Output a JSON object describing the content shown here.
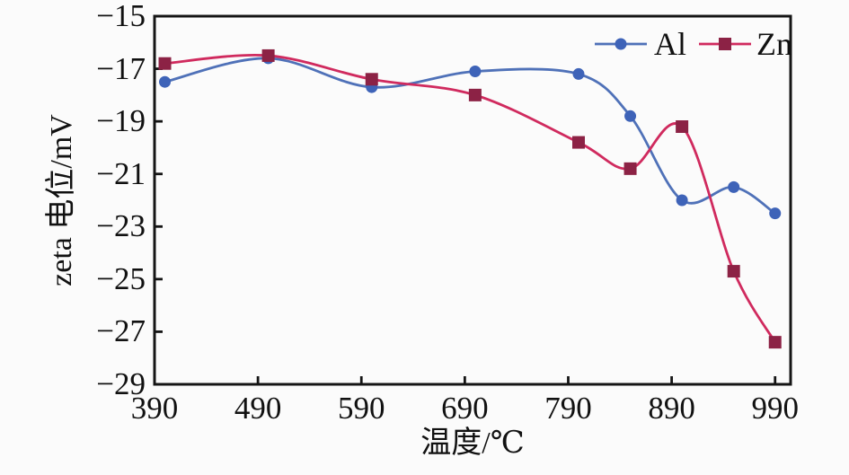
{
  "figure": {
    "background": "#fbfbfb",
    "axis_color": "#151515"
  },
  "chart_data": {
    "type": "line",
    "title": "",
    "xlabel": "温度/℃",
    "ylabel": "zeta 电位/mV",
    "x": [
      400,
      500,
      600,
      700,
      800,
      850,
      900,
      950,
      990
    ],
    "series": [
      {
        "name": "Al",
        "marker": "circle",
        "line_color": "#4f71b8",
        "marker_color": "#3e63b8",
        "values": [
          -17.5,
          -16.6,
          -17.7,
          -17.1,
          -17.2,
          -18.8,
          -22.0,
          -21.5,
          -22.5
        ]
      },
      {
        "name": "Zn",
        "marker": "square",
        "line_color": "#d02a5e",
        "marker_color": "#8c2245",
        "values": [
          -16.8,
          -16.5,
          -17.4,
          -18.0,
          -19.8,
          -20.8,
          -19.2,
          -24.7,
          -27.4
        ]
      }
    ],
    "xticks": [
      390,
      490,
      590,
      690,
      790,
      890,
      990
    ],
    "yticks": [
      -15,
      -17,
      -19,
      -21,
      -23,
      -25,
      -27,
      -29
    ],
    "xlim": [
      390,
      1005
    ],
    "ylim": [
      -29,
      -15
    ],
    "grid": false,
    "legend_position": "top-right"
  }
}
